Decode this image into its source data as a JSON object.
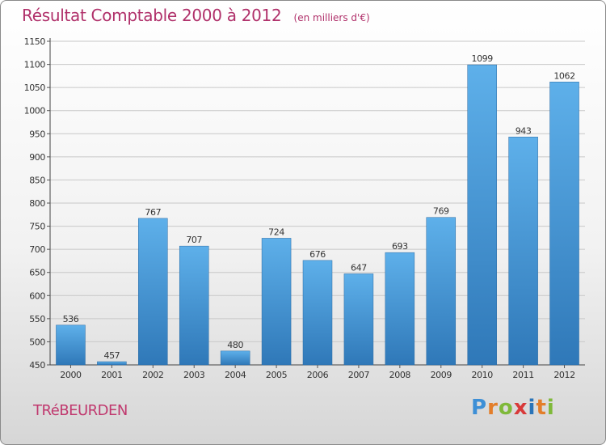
{
  "header": {
    "title": "Résultat Comptable 2000 à 2012",
    "subtitle": "(en milliers d'€)"
  },
  "footer": {
    "commune": "TRéBEURDEN",
    "logo_letters": [
      "P",
      "r",
      "o",
      "x",
      "i",
      "t",
      "i"
    ],
    "logo_colors": [
      "#3d8fd6",
      "#e37e2a",
      "#7fb93a",
      "#d83a3a",
      "#2a74b8",
      "#e37e2a",
      "#7fb93a"
    ]
  },
  "colors": {
    "bar_top": "#5eb0ea",
    "bar_bottom": "#2f78b8",
    "grid": "#c8c8c8",
    "text": "#333333"
  },
  "chart_data": {
    "type": "bar",
    "title": "Résultat Comptable 2000 à 2012",
    "xlabel": "",
    "ylabel": "",
    "categories": [
      "2000",
      "2001",
      "2002",
      "2003",
      "2004",
      "2005",
      "2006",
      "2007",
      "2008",
      "2009",
      "2010",
      "2011",
      "2012"
    ],
    "values": [
      536,
      457,
      767,
      707,
      480,
      724,
      676,
      647,
      693,
      769,
      1099,
      943,
      1062
    ],
    "ylim": [
      450,
      1150
    ],
    "yticks": [
      450,
      500,
      550,
      600,
      650,
      700,
      750,
      800,
      850,
      900,
      950,
      1000,
      1050,
      1100,
      1150
    ],
    "grid": true
  }
}
